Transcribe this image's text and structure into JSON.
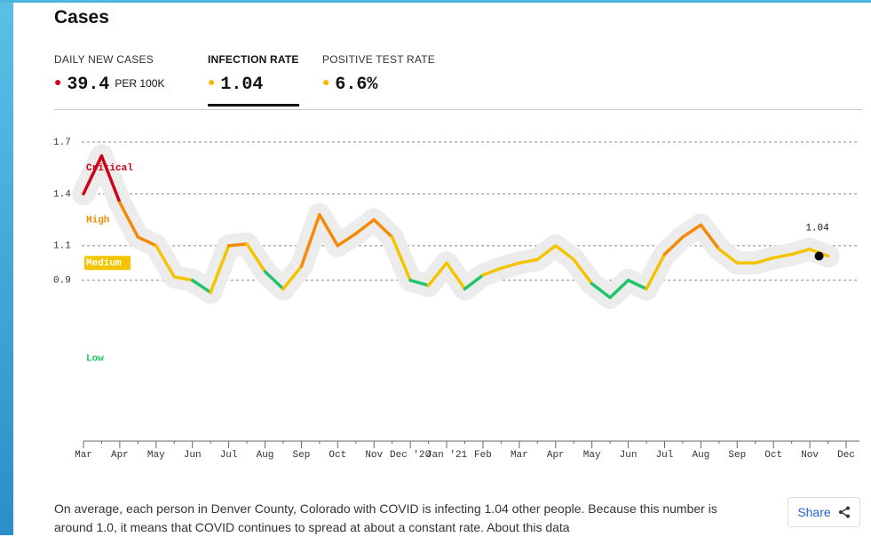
{
  "header": {
    "title": "Cases"
  },
  "tabs": [
    {
      "label": "DAILY NEW CASES",
      "value": "39.4",
      "unit": "PER 100K",
      "color": "#d0021b"
    },
    {
      "label": "INFECTION RATE",
      "value": "1.04",
      "color": "#f5b800"
    },
    {
      "label": "POSITIVE TEST RATE",
      "value": "6.6%",
      "color": "#f5b800"
    }
  ],
  "chart_data": {
    "type": "line",
    "categories": [
      "Mar",
      null,
      "Apr",
      null,
      "May",
      null,
      "Jun",
      null,
      "Jul",
      null,
      "Aug",
      null,
      "Sep",
      null,
      "Oct",
      null,
      "Nov",
      null,
      "Dec '20",
      null,
      "Jan '21",
      null,
      "Feb",
      null,
      "Mar",
      null,
      "Apr",
      null,
      "May",
      null,
      "Jun",
      null,
      "Jul",
      null,
      "Aug",
      null,
      "Sep",
      null,
      "Oct",
      null,
      "Nov",
      null,
      "Dec"
    ],
    "series": [
      {
        "name": "Infection rate",
        "color": "#000000",
        "values": [
          1.4,
          1.62,
          1.35,
          1.15,
          1.1,
          0.92,
          0.9,
          0.83,
          1.1,
          1.11,
          0.95,
          0.85,
          0.98,
          1.28,
          1.1,
          1.17,
          1.25,
          1.15,
          0.9,
          0.87,
          1.0,
          0.85,
          0.93,
          0.97,
          1.0,
          1.02,
          1.1,
          1.02,
          0.88,
          0.8,
          0.9,
          0.85,
          1.05,
          1.15,
          1.22,
          1.08,
          1.0,
          1.0,
          1.03,
          1.05,
          1.08,
          1.04,
          null
        ]
      }
    ],
    "levels": [
      {
        "name": "Critical",
        "color": "#d0021b",
        "min": 1.4,
        "max": 1.7
      },
      {
        "name": "High",
        "color": "#f58a07",
        "min": 1.1,
        "max": 1.4
      },
      {
        "name": "Medium",
        "color": "#f5c400",
        "min": 0.9,
        "max": 1.1
      },
      {
        "name": "Low",
        "color": "#1fc46b",
        "min": 0,
        "max": 0.9
      }
    ],
    "ylim": [
      0,
      1.7
    ],
    "yticks": [
      0.9,
      1.1,
      1.4,
      1.7
    ],
    "grid": true
  },
  "description": "On average, each person in Denver County, Colorado with COVID is infecting 1.04 other people. Because this number is around 1.0, it means that COVID continues to spread at about a constant rate. About this data",
  "share": "Share"
}
